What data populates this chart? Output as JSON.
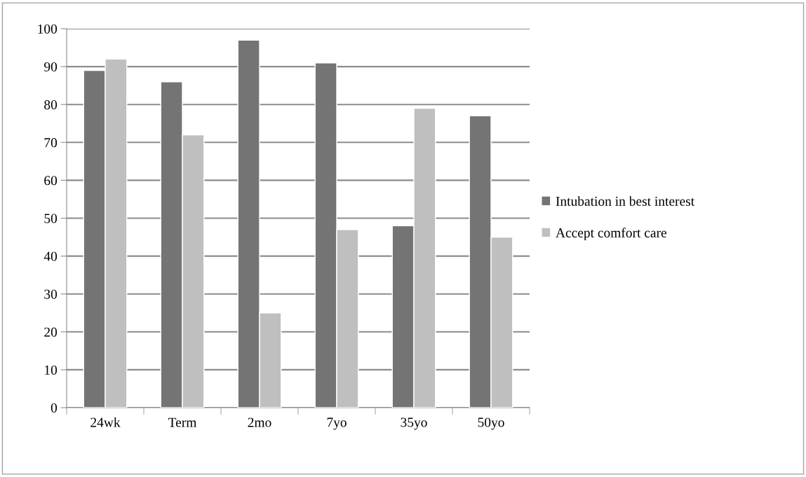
{
  "chart_data": {
    "type": "bar",
    "categories": [
      "24wk",
      "Term",
      "2mo",
      "7yo",
      "35yo",
      "50yo"
    ],
    "series": [
      {
        "name": "Intubation in best interest",
        "color": "#747474",
        "values": [
          89,
          86,
          97,
          91,
          48,
          77
        ]
      },
      {
        "name": "Accept comfort care",
        "color": "#bfbfbf",
        "values": [
          92,
          72,
          25,
          47,
          79,
          45
        ]
      }
    ],
    "ylim": [
      0,
      100
    ],
    "yticks": [
      0,
      10,
      20,
      30,
      40,
      50,
      60,
      70,
      80,
      90,
      100
    ],
    "grid": "y",
    "legend": "right"
  }
}
